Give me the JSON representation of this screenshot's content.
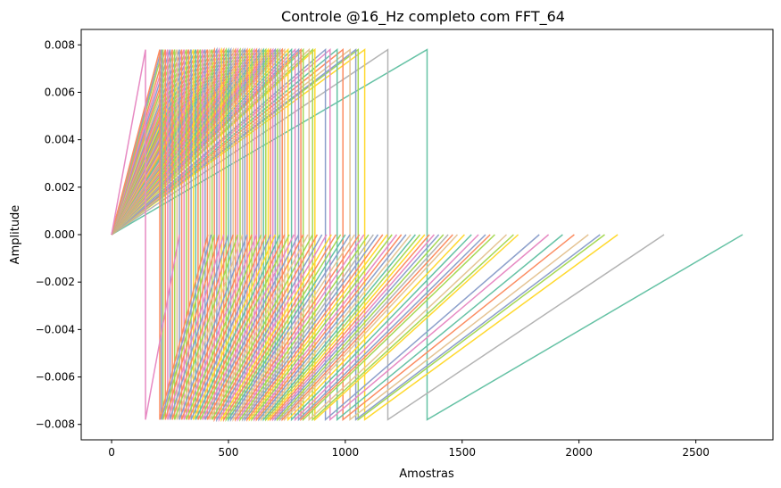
{
  "chart_data": {
    "type": "line",
    "title": "Controle @16_Hz completo com FFT_64",
    "xlabel": "Amostras",
    "ylabel": "Amplitude",
    "xlim": [
      -130,
      2830
    ],
    "ylim": [
      -0.00865,
      0.00865
    ],
    "xticks": [
      0,
      500,
      1000,
      1500,
      2000,
      2500
    ],
    "xtick_labels": [
      "0",
      "500",
      "1000",
      "1500",
      "2000",
      "2500"
    ],
    "yticks": [
      -0.008,
      -0.006,
      -0.004,
      -0.002,
      0.0,
      0.002,
      0.004,
      0.006,
      0.008
    ],
    "ytick_labels": [
      "−0.008",
      "−0.006",
      "−0.004",
      "−0.002",
      "0.000",
      "0.002",
      "0.004",
      "0.006",
      "0.008"
    ],
    "grid": false,
    "legend": false,
    "palette": [
      "#66c2a5",
      "#fc8d62",
      "#8da0cb",
      "#e78ac3",
      "#a6d854",
      "#ffd92f",
      "#e5c494",
      "#b3b3b3"
    ],
    "waveform": {
      "description": "square wave period of each trace: rises 0 to +amp over first half, jumps to -amp, returns to 0 at end",
      "amplitude": 0.0078,
      "series": [
        {
          "period": 2700,
          "color": "#66c2a5"
        },
        {
          "period": 2364,
          "color": "#b3b3b3"
        },
        {
          "period": 2166,
          "color": "#ffd92f"
        },
        {
          "period": 2110,
          "color": "#a6d854"
        },
        {
          "period": 2090,
          "color": "#8da0cb"
        },
        {
          "period": 2040,
          "color": "#e5c494"
        },
        {
          "period": 1980,
          "color": "#fc8d62"
        },
        {
          "period": 1930,
          "color": "#66c2a5"
        },
        {
          "period": 1870,
          "color": "#e78ac3"
        },
        {
          "period": 1830,
          "color": "#8da0cb"
        },
        {
          "period": 1740,
          "color": "#ffd92f"
        },
        {
          "period": 1720,
          "color": "#a6d854"
        },
        {
          "period": 1690,
          "color": "#e5c494"
        },
        {
          "period": 1640,
          "color": "#a6d854"
        },
        {
          "period": 1620,
          "color": "#fc8d62"
        },
        {
          "period": 1600,
          "color": "#8da0cb"
        },
        {
          "period": 1570,
          "color": "#e78ac3"
        },
        {
          "period": 1540,
          "color": "#66c2a5"
        },
        {
          "period": 1510,
          "color": "#ffd92f"
        },
        {
          "period": 1480,
          "color": "#e5c494"
        },
        {
          "period": 1460,
          "color": "#fc8d62"
        },
        {
          "period": 1440,
          "color": "#b3b3b3"
        },
        {
          "period": 1420,
          "color": "#a6d854"
        },
        {
          "period": 1400,
          "color": "#8da0cb"
        },
        {
          "period": 1380,
          "color": "#e78ac3"
        },
        {
          "period": 1360,
          "color": "#fc8d62"
        },
        {
          "period": 1340,
          "color": "#ffd92f"
        },
        {
          "period": 1320,
          "color": "#a6d854"
        },
        {
          "period": 1300,
          "color": "#66c2a5"
        },
        {
          "period": 1280,
          "color": "#e5c494"
        },
        {
          "period": 1260,
          "color": "#8da0cb"
        },
        {
          "period": 1240,
          "color": "#fc8d62"
        },
        {
          "period": 1220,
          "color": "#e78ac3"
        },
        {
          "period": 1200,
          "color": "#a6d854"
        },
        {
          "period": 1180,
          "color": "#ffd92f"
        },
        {
          "period": 1160,
          "color": "#fc8d62"
        },
        {
          "period": 1140,
          "color": "#8da0cb"
        },
        {
          "period": 1120,
          "color": "#b3b3b3"
        },
        {
          "period": 1100,
          "color": "#a6d854"
        },
        {
          "period": 1080,
          "color": "#e78ac3"
        },
        {
          "period": 1060,
          "color": "#fc8d62"
        },
        {
          "period": 1040,
          "color": "#e5c494"
        },
        {
          "period": 1020,
          "color": "#8da0cb"
        },
        {
          "period": 1000,
          "color": "#66c2a5"
        },
        {
          "period": 980,
          "color": "#a6d854"
        },
        {
          "period": 960,
          "color": "#fc8d62"
        },
        {
          "period": 940,
          "color": "#ffd92f"
        },
        {
          "period": 920,
          "color": "#e78ac3"
        },
        {
          "period": 900,
          "color": "#8da0cb"
        },
        {
          "period": 880,
          "color": "#fc8d62"
        },
        {
          "period": 860,
          "color": "#a6d854"
        },
        {
          "period": 840,
          "color": "#e5c494"
        },
        {
          "period": 820,
          "color": "#fc8d62"
        },
        {
          "period": 800,
          "color": "#8da0cb"
        },
        {
          "period": 780,
          "color": "#e78ac3"
        },
        {
          "period": 760,
          "color": "#a6d854"
        },
        {
          "period": 740,
          "color": "#fc8d62"
        },
        {
          "period": 720,
          "color": "#66c2a5"
        },
        {
          "period": 700,
          "color": "#ffd92f"
        },
        {
          "period": 680,
          "color": "#8da0cb"
        },
        {
          "period": 660,
          "color": "#fc8d62"
        },
        {
          "period": 640,
          "color": "#a6d854"
        },
        {
          "period": 620,
          "color": "#e78ac3"
        },
        {
          "period": 600,
          "color": "#fc8d62"
        },
        {
          "period": 580,
          "color": "#8da0cb"
        },
        {
          "period": 560,
          "color": "#e5c494"
        },
        {
          "period": 540,
          "color": "#a6d854"
        },
        {
          "period": 520,
          "color": "#fc8d62"
        },
        {
          "period": 500,
          "color": "#8da0cb"
        },
        {
          "period": 480,
          "color": "#e78ac3"
        },
        {
          "period": 460,
          "color": "#fc8d62"
        },
        {
          "period": 440,
          "color": "#a6d854"
        },
        {
          "period": 426,
          "color": "#8da0cb"
        },
        {
          "period": 412,
          "color": "#fc8d62"
        }
      ],
      "extra_series": [
        {
          "period": 290,
          "color": "#e78ac3"
        }
      ]
    }
  }
}
